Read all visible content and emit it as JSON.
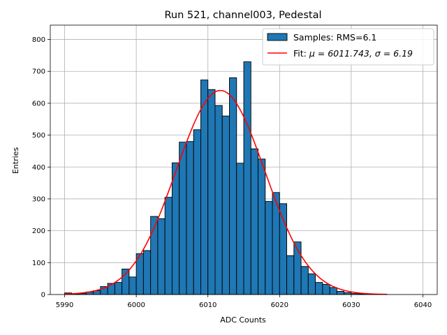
{
  "chart_data": {
    "type": "bar",
    "title": "Run 521, channel003, Pedestal",
    "xlabel": "ADC Counts",
    "ylabel": "Entries",
    "xlim": [
      5988,
      6042
    ],
    "ylim": [
      0,
      845
    ],
    "xticks": [
      5990,
      6000,
      6010,
      6020,
      6030,
      6040
    ],
    "yticks": [
      0,
      100,
      200,
      300,
      400,
      500,
      600,
      700,
      800
    ],
    "grid": true,
    "legend_position": "top-right",
    "histogram": {
      "name": "Samples: RMS=6.1",
      "color": "#1f77b4",
      "bin_width": 1,
      "bin_starts": [
        5990,
        5991,
        5992,
        5993,
        5994,
        5995,
        5996,
        5997,
        5998,
        5999,
        6000,
        6001,
        6002,
        6003,
        6004,
        6005,
        6006,
        6007,
        6008,
        6009,
        6010,
        6011,
        6012,
        6013,
        6014,
        6015,
        6016,
        6017,
        6018,
        6019,
        6020,
        6021,
        6022,
        6023,
        6024,
        6025,
        6026,
        6027,
        6028,
        6029,
        6030,
        6031,
        6032,
        6033,
        6034
      ],
      "counts": [
        5,
        2,
        3,
        8,
        12,
        25,
        35,
        38,
        80,
        55,
        128,
        138,
        245,
        238,
        305,
        413,
        478,
        480,
        517,
        673,
        643,
        593,
        560,
        680,
        412,
        730,
        457,
        425,
        292,
        320,
        285,
        122,
        165,
        88,
        65,
        38,
        32,
        22,
        10,
        6,
        3,
        2,
        1,
        1,
        1
      ]
    },
    "fit": {
      "name_prefix": "Fit: ",
      "name_symbols": "μ = 6011.743, σ = 6.19",
      "color": "#ff0000",
      "mu": 6011.743,
      "sigma": 6.19,
      "peak": 640,
      "x_range": [
        5990,
        6035
      ]
    }
  }
}
